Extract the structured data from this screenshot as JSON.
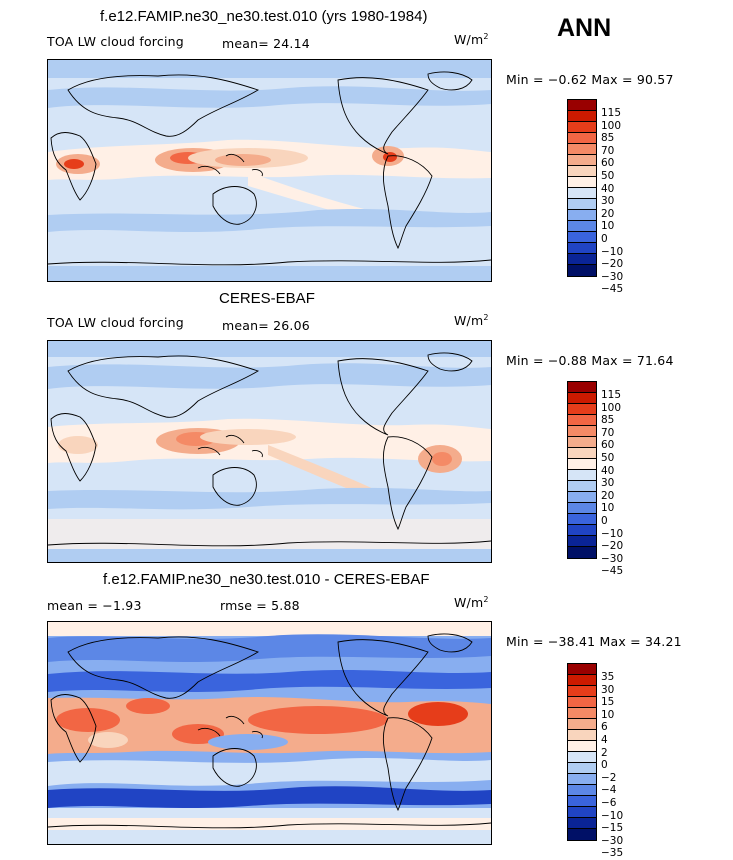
{
  "season": "ANN",
  "panels": [
    {
      "title": "f.e12.FAMIP.ne30_ne30.test.010 (yrs 1980-1984)",
      "left_label": "TOA LW cloud forcing",
      "stat_label": "mean=",
      "stat_value": "24.14",
      "units": "W/m",
      "units_exp": "2",
      "min_label": "Min =",
      "min_value": "−0.62",
      "max_label": "Max =",
      "max_value": "90.57",
      "colorbar": {
        "colors": [
          "#990000",
          "#cc1a00",
          "#e63d1a",
          "#f26644",
          "#f48a66",
          "#f4ac8c",
          "#f9d5bd",
          "#fff0e6",
          "#d6e5f7",
          "#b0cdf2",
          "#88aef0",
          "#5c87e6",
          "#3a64dd",
          "#2044c4",
          "#0a2496",
          "#001066"
        ],
        "labels": [
          "115",
          "100",
          "85",
          "70",
          "60",
          "50",
          "40",
          "30",
          "20",
          "10",
          "0",
          "−10",
          "−20",
          "−30",
          "−45"
        ]
      }
    },
    {
      "title": "CERES-EBAF",
      "left_label": "TOA LW cloud forcing",
      "stat_label": "mean=",
      "stat_value": "26.06",
      "units": "W/m",
      "units_exp": "2",
      "min_label": "Min =",
      "min_value": "−0.88",
      "max_label": "Max =",
      "max_value": "71.64",
      "colorbar": {
        "colors": [
          "#990000",
          "#cc1a00",
          "#e63d1a",
          "#f26644",
          "#f48a66",
          "#f4ac8c",
          "#f9d5bd",
          "#fff0e6",
          "#d6e5f7",
          "#b0cdf2",
          "#88aef0",
          "#5c87e6",
          "#3a64dd",
          "#2044c4",
          "#0a2496",
          "#001066"
        ],
        "labels": [
          "115",
          "100",
          "85",
          "70",
          "60",
          "50",
          "40",
          "30",
          "20",
          "10",
          "0",
          "−10",
          "−20",
          "−30",
          "−45"
        ]
      }
    },
    {
      "title": "f.e12.FAMIP.ne30_ne30.test.010 - CERES-EBAF",
      "left_label": "mean =",
      "left_value": "−1.93",
      "stat_label": "rmse =",
      "stat_value": "5.88",
      "units": "W/m",
      "units_exp": "2",
      "min_label": "Min =",
      "min_value": "−38.41",
      "max_label": "Max =",
      "max_value": "34.21",
      "colorbar": {
        "colors": [
          "#990000",
          "#cc1a00",
          "#e63d1a",
          "#f26644",
          "#f48a66",
          "#f4ac8c",
          "#f9d5bd",
          "#fff0e6",
          "#d6e5f7",
          "#b0cdf2",
          "#88aef0",
          "#5c87e6",
          "#3a64dd",
          "#2044c4",
          "#0a2496",
          "#001066"
        ],
        "labels": [
          "35",
          "30",
          "15",
          "10",
          "6",
          "4",
          "2",
          "0",
          "−2",
          "−4",
          "−6",
          "−10",
          "−15",
          "−30",
          "−35"
        ]
      }
    }
  ]
}
